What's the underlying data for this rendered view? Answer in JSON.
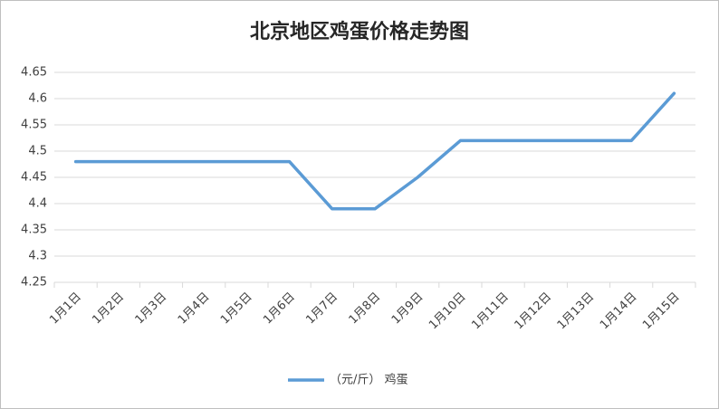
{
  "chart_data": {
    "type": "line",
    "title": "北京地区鸡蛋价格走势图",
    "categories": [
      "1月1日",
      "1月2日",
      "1月3日",
      "1月4日",
      "1月5日",
      "1月6日",
      "1月7日",
      "1月8日",
      "1月9日",
      "1月10日",
      "1月11日",
      "1月12日",
      "1月13日",
      "1月14日",
      "1月15日"
    ],
    "series": [
      {
        "name": "（元/斤） 鸡蛋",
        "color": "#5b9bd5",
        "values": [
          4.48,
          4.48,
          4.48,
          4.48,
          4.48,
          4.48,
          4.39,
          4.39,
          4.45,
          4.52,
          4.52,
          4.52,
          4.52,
          4.52,
          4.61
        ]
      }
    ],
    "ylim": [
      4.25,
      4.65
    ],
    "yticks": [
      4.25,
      4.3,
      4.35,
      4.4,
      4.45,
      4.5,
      4.55,
      4.6,
      4.65
    ],
    "grid": true,
    "legend": "bottom"
  }
}
